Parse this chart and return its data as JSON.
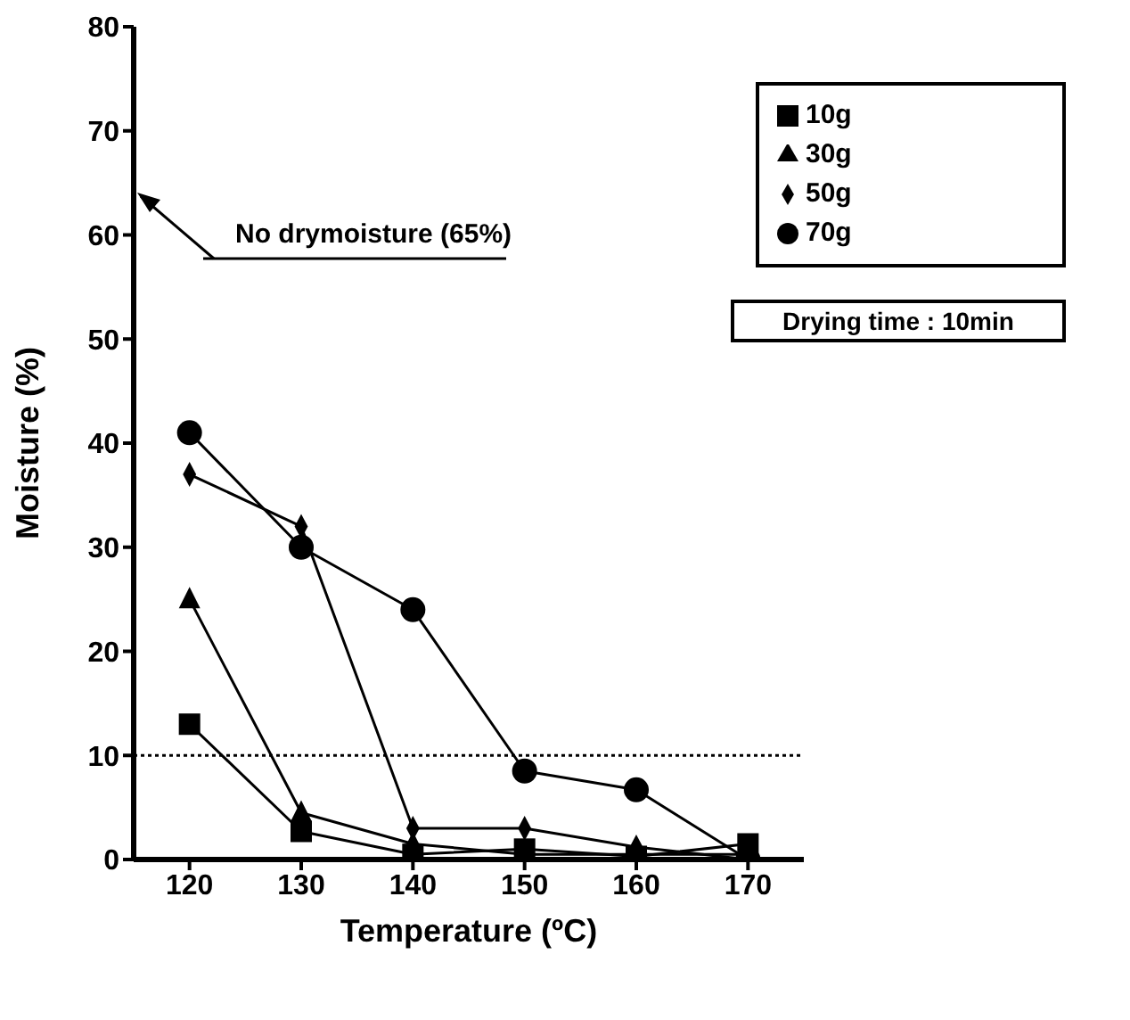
{
  "chart_data": {
    "type": "line",
    "xlabel": "Temperature (ºC)",
    "ylabel": "Moisture (%)",
    "x": [
      120,
      130,
      140,
      150,
      160,
      170
    ],
    "xlim": [
      115,
      175
    ],
    "xticks": [
      120,
      130,
      140,
      150,
      160,
      170
    ],
    "ylim": [
      0,
      80
    ],
    "yticks": [
      0,
      10,
      20,
      30,
      40,
      50,
      60,
      70,
      80
    ],
    "legend": "top right",
    "line_style": "solid",
    "series": [
      {
        "name": "10g",
        "color": "#000000",
        "marker": "square",
        "values": [
          13,
          2.7,
          0.5,
          1,
          0.3,
          1.5
        ]
      },
      {
        "name": "30g",
        "color": "#000000",
        "marker": "triangle",
        "values": [
          25,
          4.5,
          1.5,
          0.5,
          0.5,
          0.5
        ]
      },
      {
        "name": "50g",
        "color": "#000000",
        "marker": "diamond",
        "values": [
          37,
          32,
          3,
          3,
          1.2,
          0
        ]
      },
      {
        "name": "70g",
        "color": "#000000",
        "marker": "circle",
        "values": [
          41,
          30,
          24,
          8.5,
          6.7,
          0
        ]
      }
    ],
    "ref_lines": [
      {
        "axis": "y",
        "value": 10,
        "line_style": "dotted"
      }
    ],
    "annotations": [
      "No drymoisture (65%)",
      "Drying time : 10min"
    ]
  }
}
